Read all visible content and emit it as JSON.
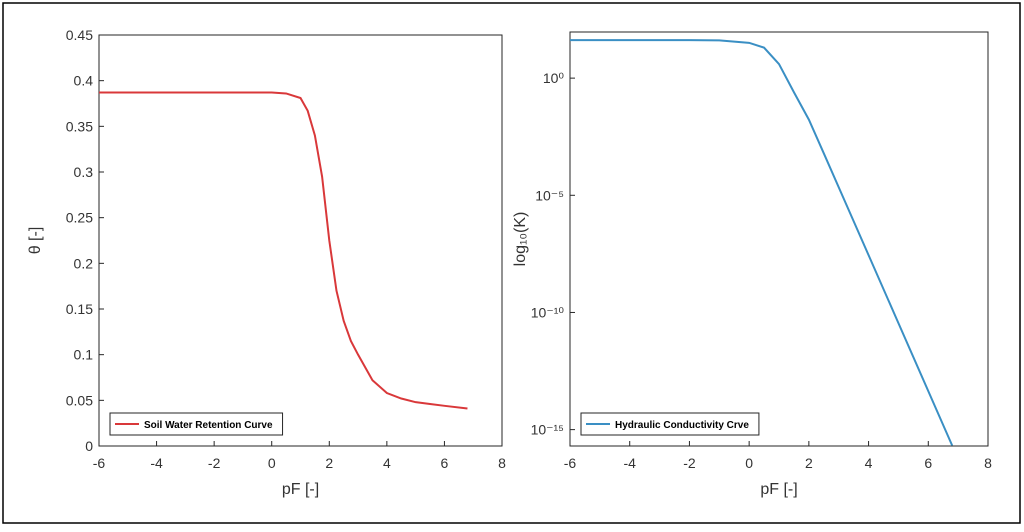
{
  "chart_data": [
    {
      "type": "line",
      "xlabel": "pF [-]",
      "ylabel": "θ [-]",
      "x": [
        -6,
        -5,
        -4,
        -3,
        -2,
        -1,
        0,
        0.5,
        1,
        1.25,
        1.5,
        1.75,
        2,
        2.25,
        2.5,
        2.75,
        3,
        3.5,
        4,
        4.5,
        5,
        5.5,
        6,
        6.8
      ],
      "series": [
        {
          "name": "Soil Water Retention Curve",
          "color": "#d9383a",
          "values": [
            0.387,
            0.387,
            0.387,
            0.387,
            0.387,
            0.387,
            0.387,
            0.386,
            0.381,
            0.367,
            0.34,
            0.295,
            0.225,
            0.17,
            0.137,
            0.115,
            0.1,
            0.072,
            0.058,
            0.052,
            0.048,
            0.046,
            0.044,
            0.041
          ]
        }
      ],
      "xlim": [
        -6,
        8
      ],
      "xticks": [
        -6,
        -4,
        -2,
        0,
        2,
        4,
        6,
        8
      ],
      "ylim": [
        0,
        0.45
      ],
      "yticks": [
        0,
        0.05,
        0.1,
        0.15,
        0.2,
        0.25,
        0.3,
        0.35,
        0.4,
        0.45
      ],
      "yscale": "linear",
      "legend": "lower left"
    },
    {
      "type": "line",
      "xlabel": "pF [-]",
      "ylabel": "log₁₀(K)",
      "x": [
        -6,
        -5,
        -4,
        -3,
        -2,
        -1,
        0,
        0.5,
        1,
        1.5,
        2,
        2.5,
        3,
        4,
        5,
        6,
        6.8
      ],
      "series": [
        {
          "name": "Hydraulic Conductivity Crve",
          "color": "#3a8fc4",
          "values": [
            42,
            42,
            42,
            42,
            42,
            41,
            32,
            20,
            4,
            0.25,
            0.017,
            0.00062,
            2.2e-05,
            2.8e-08,
            3.5e-11,
            4.4e-14,
            2.1e-16
          ]
        }
      ],
      "xlim": [
        -6,
        8
      ],
      "xticks": [
        -6,
        -4,
        -2,
        0,
        2,
        4,
        6,
        8
      ],
      "ylim": [
        2e-16,
        93
      ],
      "yticks": [
        {
          "value": 1e-15,
          "label": "10⁻¹⁵"
        },
        {
          "value": 1e-10,
          "label": "10⁻¹⁰"
        },
        {
          "value": 1e-05,
          "label": "10⁻⁵"
        },
        {
          "value": 1,
          "label": "10⁰"
        }
      ],
      "yscale": "log",
      "legend": "lower left"
    }
  ]
}
